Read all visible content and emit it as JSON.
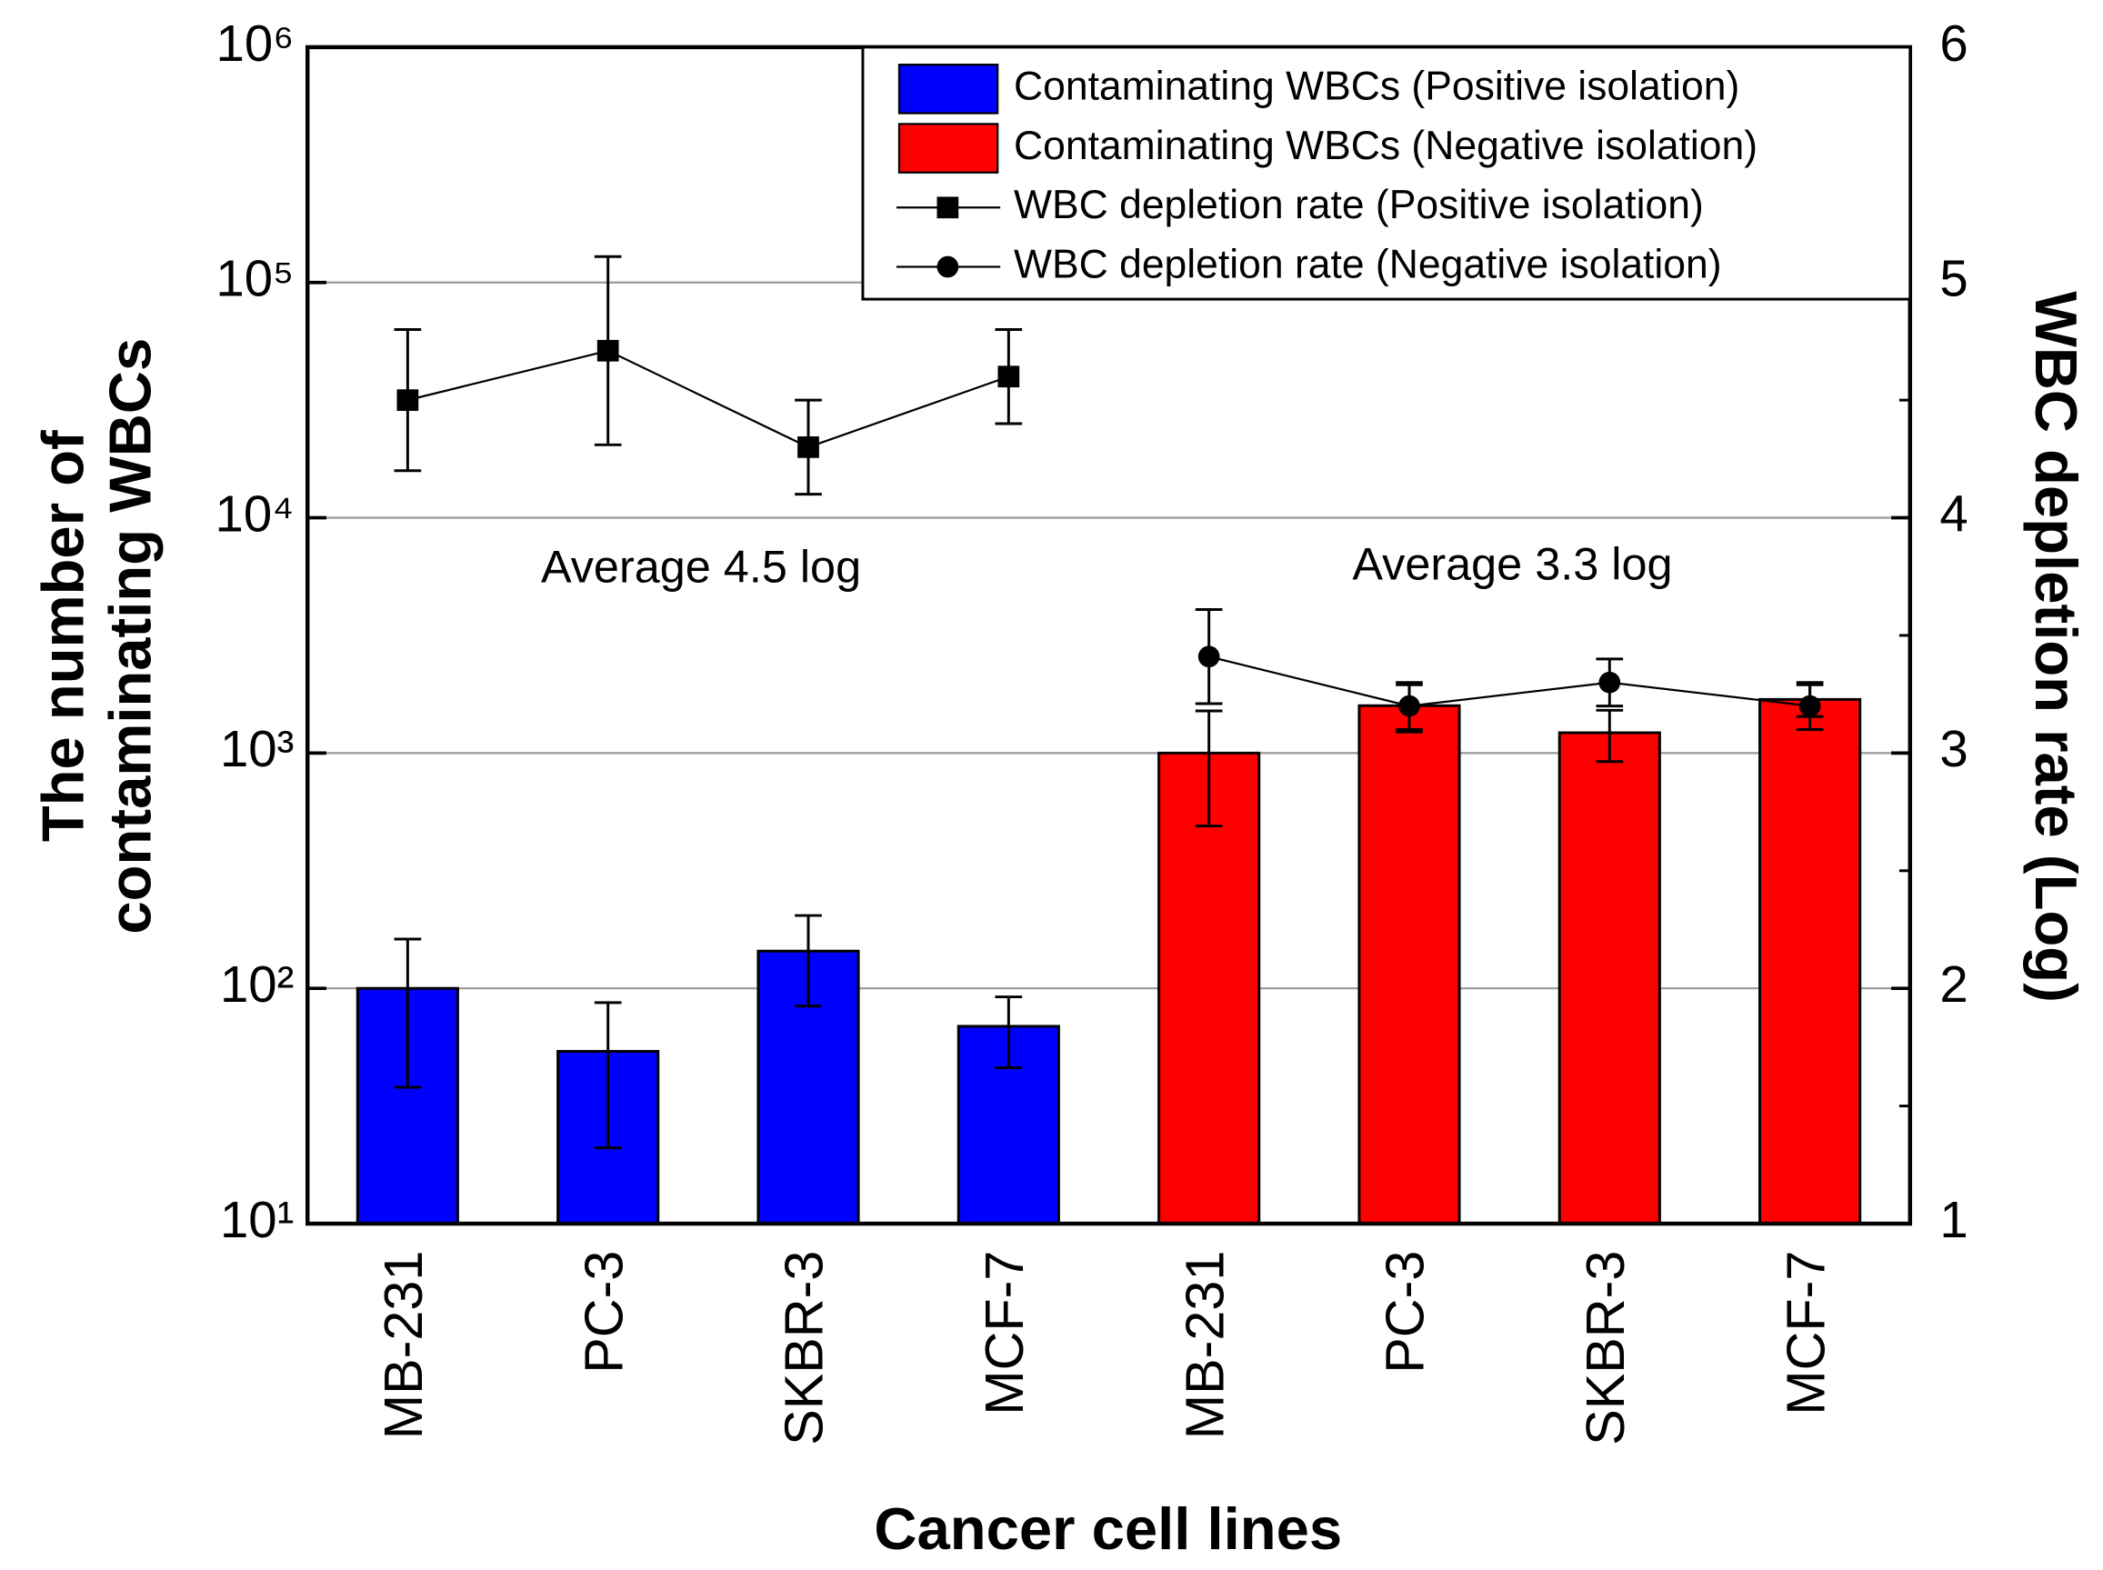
{
  "chart_data": {
    "type": "bar",
    "categories": [
      "MB-231",
      "PC-3",
      "SKBR-3",
      "MCF-7",
      "MB-231",
      "PC-3",
      "SKBR-3",
      "MCF-7"
    ],
    "xlabel": "Cancer cell lines",
    "ylabel": [
      "The number of",
      "contaminating WBCs"
    ],
    "y2label": "WBC depletion rate (Log)",
    "ylim": [
      10,
      1000000
    ],
    "log_y": true,
    "yticks": [
      {
        "value": 10,
        "label": "10¹"
      },
      {
        "value": 100,
        "label": "10²"
      },
      {
        "value": 1000,
        "label": "10³"
      },
      {
        "value": 10000,
        "label": "10⁴"
      },
      {
        "value": 100000,
        "label": "10⁵"
      },
      {
        "value": 1000000,
        "label": "10⁶"
      }
    ],
    "y2lim": [
      1,
      6
    ],
    "y2ticks": [
      1,
      2,
      3,
      4,
      5,
      6
    ],
    "y2minor_ticks": [
      1.5,
      2.5,
      3.5,
      4.5,
      5.5
    ],
    "grid": true,
    "legend": "upper right",
    "annotations": [
      {
        "text": "Average 4.5 log"
      },
      {
        "text": "Average 3.3 log"
      }
    ],
    "series": [
      {
        "name": "Contaminating WBCs (Positive isolation)",
        "type": "bar",
        "color": "#0000ff",
        "values": [
          100,
          54,
          144,
          69,
          null,
          null,
          null,
          null
        ],
        "errors": [
          62,
          33,
          60,
          23,
          null,
          null,
          null,
          null
        ]
      },
      {
        "name": "Contaminating WBCs (Negative isolation)",
        "type": "bar",
        "color": "#ff0000",
        "values": [
          null,
          null,
          null,
          null,
          1000,
          1590,
          1220,
          1690
        ],
        "errors": [
          null,
          null,
          null,
          null,
          510,
          360,
          300,
          260
        ]
      },
      {
        "name": "WBC depletion rate (Positive isolation)",
        "type": "line",
        "axis": "y2",
        "marker": "square",
        "color": "#000000",
        "values": [
          4.5,
          4.71,
          4.3,
          4.6,
          null,
          null,
          null,
          null
        ],
        "errors": [
          0.3,
          0.4,
          0.2,
          0.2,
          null,
          null,
          null,
          null
        ]
      },
      {
        "name": "WBC depletion rate (Negative isolation)",
        "type": "line",
        "axis": "y2",
        "marker": "circle",
        "color": "#000000",
        "values": [
          null,
          null,
          null,
          null,
          3.41,
          3.2,
          3.3,
          3.2
        ],
        "errors": [
          null,
          null,
          null,
          null,
          0.2,
          0.1,
          0.1,
          0.1
        ]
      }
    ]
  }
}
